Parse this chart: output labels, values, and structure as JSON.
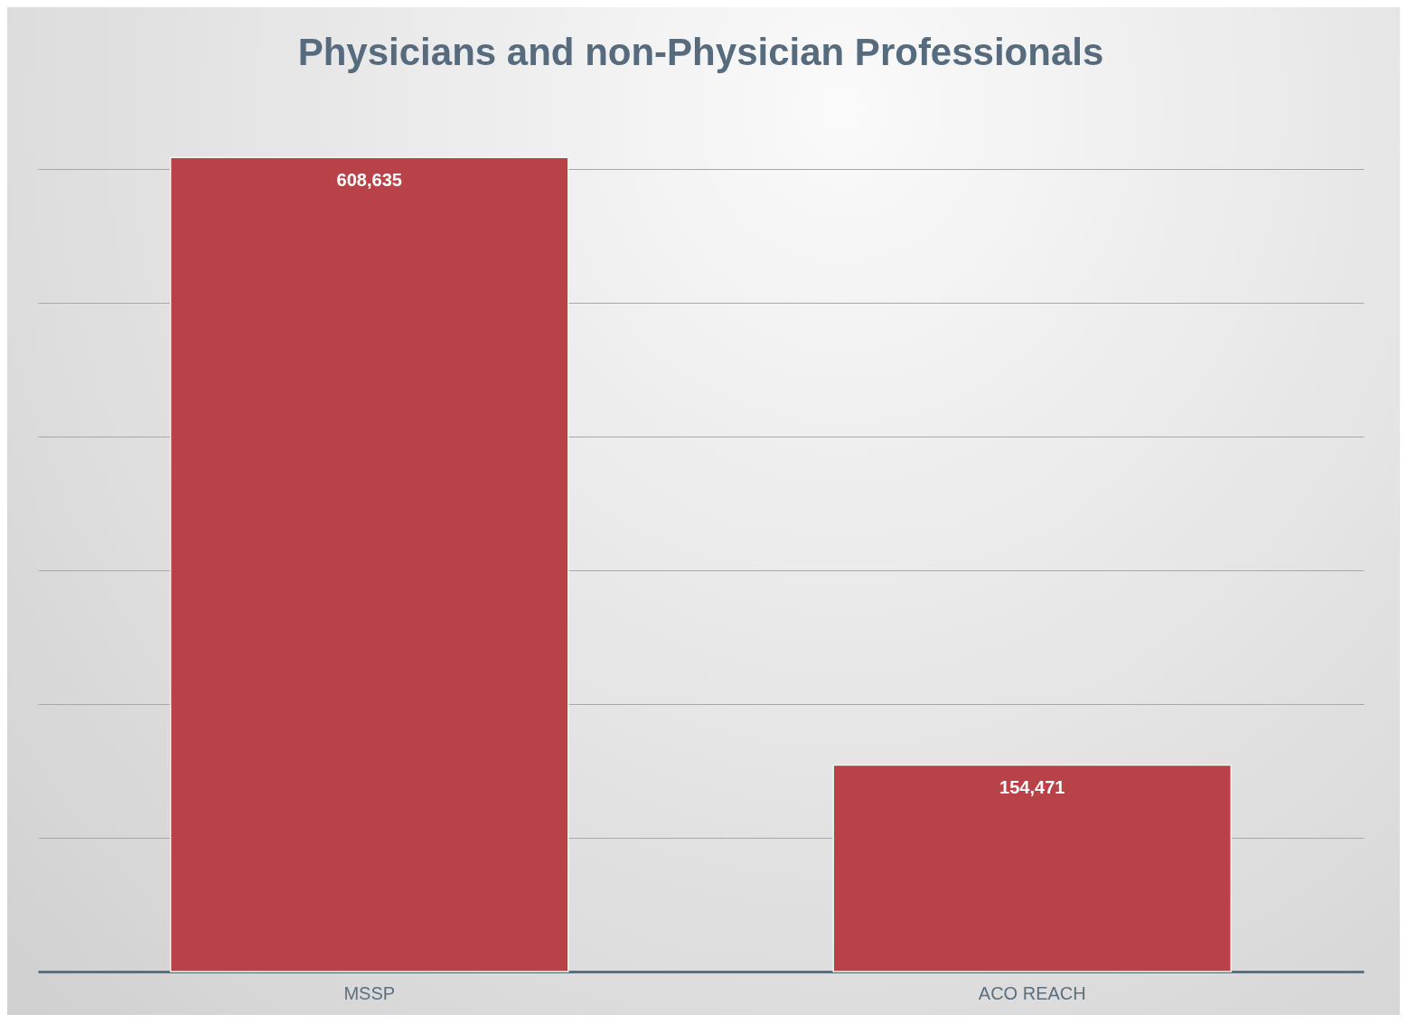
{
  "chart_data": {
    "type": "bar",
    "title": "Physicians and non-Physician Professionals",
    "categories": [
      "MSSP",
      "ACO REACH"
    ],
    "values": [
      608635,
      154471
    ],
    "value_labels": [
      "608,635",
      "154,471"
    ],
    "color": "#b94148",
    "tick_labels": "x",
    "grid": "y"
  }
}
